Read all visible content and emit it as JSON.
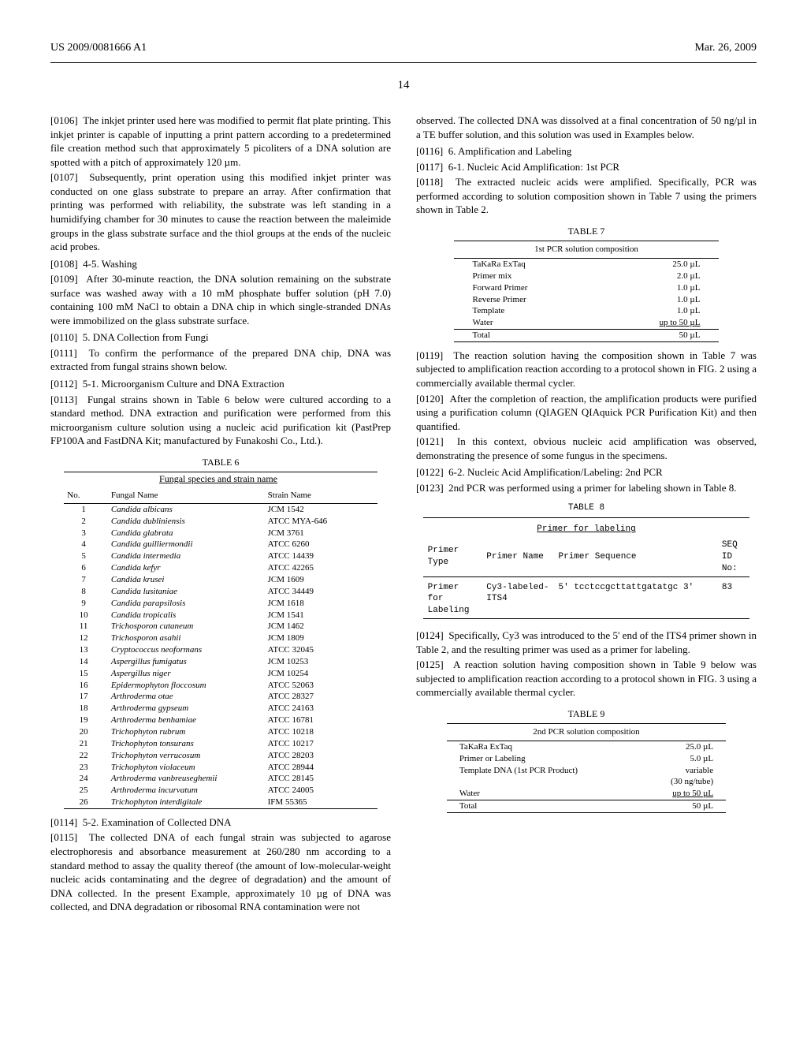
{
  "header": {
    "pubno": "US 2009/0081666 A1",
    "date": "Mar. 26, 2009",
    "pagenum": "14"
  },
  "left": {
    "p0106": {
      "num": "[0106]",
      "text": "The inkjet printer used here was modified to permit flat plate printing. This inkjet printer is capable of inputting a print pattern according to a predetermined file creation method such that approximately 5 picoliters of a DNA solution are spotted with a pitch of approximately 120 µm."
    },
    "p0107": {
      "num": "[0107]",
      "text": "Subsequently, print operation using this modified inkjet printer was conducted on one glass substrate to prepare an array. After confirmation that printing was performed with reliability, the substrate was left standing in a humidifying chamber for 30 minutes to cause the reaction between the maleimide groups in the glass substrate surface and the thiol groups at the ends of the nucleic acid probes."
    },
    "p0108": {
      "num": "[0108]",
      "text": "4-5. Washing"
    },
    "p0109": {
      "num": "[0109]",
      "text": "After 30-minute reaction, the DNA solution remaining on the substrate surface was washed away with a 10 mM phosphate buffer solution (pH 7.0) containing 100 mM NaCl to obtain a DNA chip in which single-stranded DNAs were immobilized on the glass substrate surface."
    },
    "p0110": {
      "num": "[0110]",
      "text": "5. DNA Collection from Fungi"
    },
    "p0111": {
      "num": "[0111]",
      "text": "To confirm the performance of the prepared DNA chip, DNA was extracted from fungal strains shown below."
    },
    "p0112": {
      "num": "[0112]",
      "text": "5-1. Microorganism Culture and DNA Extraction"
    },
    "p0113": {
      "num": "[0113]",
      "text": "Fungal strains shown in Table 6 below were cultured according to a standard method. DNA extraction and purification were performed from this microorganism culture solution using a nucleic acid purification kit (PastPrep FP100A and FastDNA Kit; manufactured by Funakoshi Co., Ltd.)."
    },
    "p0114": {
      "num": "[0114]",
      "text": "5-2. Examination of Collected DNA"
    },
    "p0115": {
      "num": "[0115]",
      "text": "The collected DNA of each fungal strain was subjected to agarose electrophoresis and absorbance measurement at 260/280 nm according to a standard method to assay the quality thereof (the amount of low-molecular-weight nucleic acids contaminating and the degree of degradation) and the amount of DNA collected. In the present Example, approximately 10 µg of DNA was collected, and DNA degradation or ribosomal RNA contamination were not"
    }
  },
  "table6": {
    "caption": "TABLE 6",
    "subcaption": "Fungal species and strain name",
    "head": {
      "no": "No.",
      "fungal": "Fungal Name",
      "strain": "Strain Name"
    },
    "rows": [
      {
        "no": "1",
        "fungal": "Candida albicans",
        "strain": "JCM 1542"
      },
      {
        "no": "2",
        "fungal": "Candida dubliniensis",
        "strain": "ATCC MYA-646"
      },
      {
        "no": "3",
        "fungal": "Candida glabrata",
        "strain": "JCM 3761"
      },
      {
        "no": "4",
        "fungal": "Candida guilliermondii",
        "strain": "ATCC 6260"
      },
      {
        "no": "5",
        "fungal": "Candida intermedia",
        "strain": "ATCC 14439"
      },
      {
        "no": "6",
        "fungal": "Candida kefyr",
        "strain": "ATCC 42265"
      },
      {
        "no": "7",
        "fungal": "Candida krusei",
        "strain": "JCM 1609"
      },
      {
        "no": "8",
        "fungal": "Candida lusitaniae",
        "strain": "ATCC 34449"
      },
      {
        "no": "9",
        "fungal": "Candida parapsilosis",
        "strain": "JCM 1618"
      },
      {
        "no": "10",
        "fungal": "Candida tropicalis",
        "strain": "JCM 1541"
      },
      {
        "no": "11",
        "fungal": "Trichosporon cutaneum",
        "strain": "JCM 1462"
      },
      {
        "no": "12",
        "fungal": "Trichosporon asahii",
        "strain": "JCM 1809"
      },
      {
        "no": "13",
        "fungal": "Cryptococcus neoformans",
        "strain": "ATCC 32045"
      },
      {
        "no": "14",
        "fungal": "Aspergillus fumigatus",
        "strain": "JCM 10253"
      },
      {
        "no": "15",
        "fungal": "Aspergillus niger",
        "strain": "JCM 10254"
      },
      {
        "no": "16",
        "fungal": "Epidermophyton floccosum",
        "strain": "ATCC 52063"
      },
      {
        "no": "17",
        "fungal": "Arthroderma otae",
        "strain": "ATCC 28327"
      },
      {
        "no": "18",
        "fungal": "Arthroderma gypseum",
        "strain": "ATCC 24163"
      },
      {
        "no": "19",
        "fungal": "Arthroderma benhamiae",
        "strain": "ATCC 16781"
      },
      {
        "no": "20",
        "fungal": "Trichophyton rubrum",
        "strain": "ATCC 10218"
      },
      {
        "no": "21",
        "fungal": "Trichophyton tonsurans",
        "strain": "ATCC 10217"
      },
      {
        "no": "22",
        "fungal": "Trichophyton verrucosum",
        "strain": "ATCC 28203"
      },
      {
        "no": "23",
        "fungal": "Trichophyton violaceum",
        "strain": "ATCC 28944"
      },
      {
        "no": "24",
        "fungal": "Arthroderma vanbreuseghemii",
        "strain": "ATCC 28145"
      },
      {
        "no": "25",
        "fungal": "Arthroderma incurvatum",
        "strain": "ATCC 24005"
      },
      {
        "no": "26",
        "fungal": "Trichophyton interdigitale",
        "strain": "IFM 55365"
      }
    ]
  },
  "right": {
    "pcont": "observed. The collected DNA was dissolved at a final concentration of 50 ng/µl in a TE buffer solution, and this solution was used in Examples below.",
    "p0116": {
      "num": "[0116]",
      "text": "6. Amplification and Labeling"
    },
    "p0117": {
      "num": "[0117]",
      "text": "6-1. Nucleic Acid Amplification: 1st PCR"
    },
    "p0118": {
      "num": "[0118]",
      "text": "The extracted nucleic acids were amplified. Specifically, PCR was performed according to solution composition shown in Table 7 using the primers shown in Table 2."
    },
    "p0119": {
      "num": "[0119]",
      "text": "The reaction solution having the composition shown in Table 7 was subjected to amplification reaction according to a protocol shown in FIG. 2 using a commercially available thermal cycler."
    },
    "p0120": {
      "num": "[0120]",
      "text": "After the completion of reaction, the amplification products were purified using a purification column (QIAGEN QIAquick PCR Purification Kit) and then quantified."
    },
    "p0121": {
      "num": "[0121]",
      "text": "In this context, obvious nucleic acid amplification was observed, demonstrating the presence of some fungus in the specimens."
    },
    "p0122": {
      "num": "[0122]",
      "text": "6-2. Nucleic Acid Amplification/Labeling: 2nd PCR"
    },
    "p0123": {
      "num": "[0123]",
      "text": "2nd PCR was performed using a primer for labeling shown in Table 8."
    },
    "p0124": {
      "num": "[0124]",
      "text": "Specifically, Cy3 was introduced to the 5' end of the ITS4 primer shown in Table 2, and the resulting primer was used as a primer for labeling."
    },
    "p0125": {
      "num": "[0125]",
      "text": "A reaction solution having composition shown in Table 9 below was subjected to amplification reaction according to a protocol shown in FIG. 3 using a commercially available thermal cycler."
    }
  },
  "table7": {
    "caption": "TABLE 7",
    "subcaption": "1st PCR solution composition",
    "rows": [
      {
        "a": "TaKaRa ExTaq",
        "b": "25.0 µL"
      },
      {
        "a": "Primer mix",
        "b": "2.0 µL"
      },
      {
        "a": "Forward Primer",
        "b": "1.0 µL"
      },
      {
        "a": "Reverse Primer",
        "b": "1.0 µL"
      },
      {
        "a": "Template",
        "b": "1.0 µL"
      },
      {
        "a": "Water",
        "b": "up to 50 µL"
      }
    ],
    "total": {
      "a": "Total",
      "b": "50 µL"
    }
  },
  "table8": {
    "caption": "TABLE 8",
    "subcaption": "Primer for labeling",
    "head": {
      "c1": "Primer Type",
      "c2": "Primer Name",
      "c3": "Primer Sequence",
      "c4": "SEQ ID No:"
    },
    "row": {
      "c1": "Primer for Labeling",
      "c2": "Cy3-labeled-ITS4",
      "c3": "5' tcctccgcttattgatatgc 3'",
      "c4": "83"
    }
  },
  "table9": {
    "caption": "TABLE 9",
    "subcaption": "2nd PCR solution composition",
    "rows": [
      {
        "a": "TaKaRa ExTaq",
        "b": "25.0 µL"
      },
      {
        "a": "Primer or Labeling",
        "b": "5.0 µL"
      },
      {
        "a": "Template DNA (1st PCR Product)",
        "b": "variable"
      },
      {
        "a": "",
        "b": "(30 ng/tube)"
      },
      {
        "a": "Water",
        "b": "up to 50 µL"
      }
    ],
    "total": {
      "a": "Total",
      "b": "50 µL"
    }
  }
}
